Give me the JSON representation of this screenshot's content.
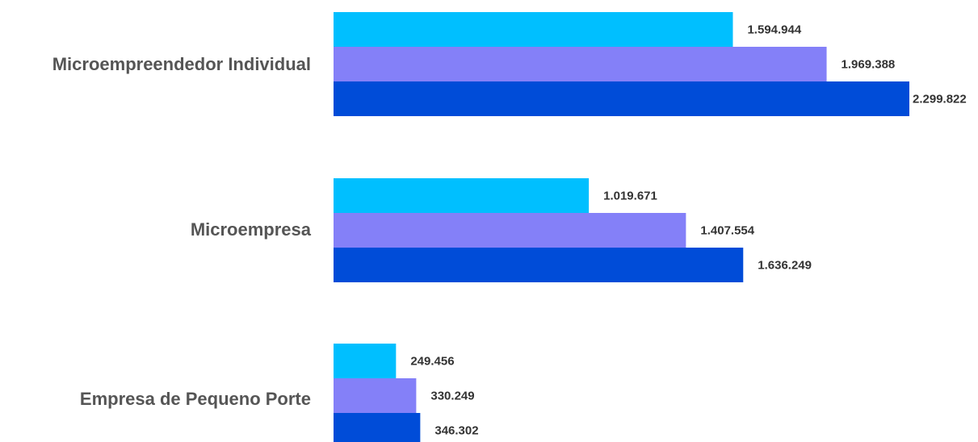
{
  "chart_data": {
    "type": "bar",
    "orientation": "horizontal",
    "categories": [
      "Microempreendedor Individual",
      "Microempresa",
      "Empresa de Pequeno Porte"
    ],
    "series": [
      {
        "values": [
          1594944,
          1019671,
          249456
        ],
        "labels": [
          "1.594.944",
          "1.019.671",
          "249.456"
        ]
      },
      {
        "values": [
          1969388,
          1407554,
          330249
        ],
        "labels": [
          "1.969.388",
          "1.407.554",
          "330.249"
        ]
      },
      {
        "values": [
          2299822,
          1636249,
          346302
        ],
        "labels": [
          "2.299.822",
          "1.636.249",
          "346.302"
        ]
      }
    ],
    "colors": [
      "#00BFFF",
      "#8480F8",
      "#004CD8"
    ],
    "title": "",
    "xlabel": "",
    "ylabel": "",
    "xlim": [
      0,
      2299822
    ],
    "grid": false,
    "legend": "none",
    "data_labels": true
  }
}
